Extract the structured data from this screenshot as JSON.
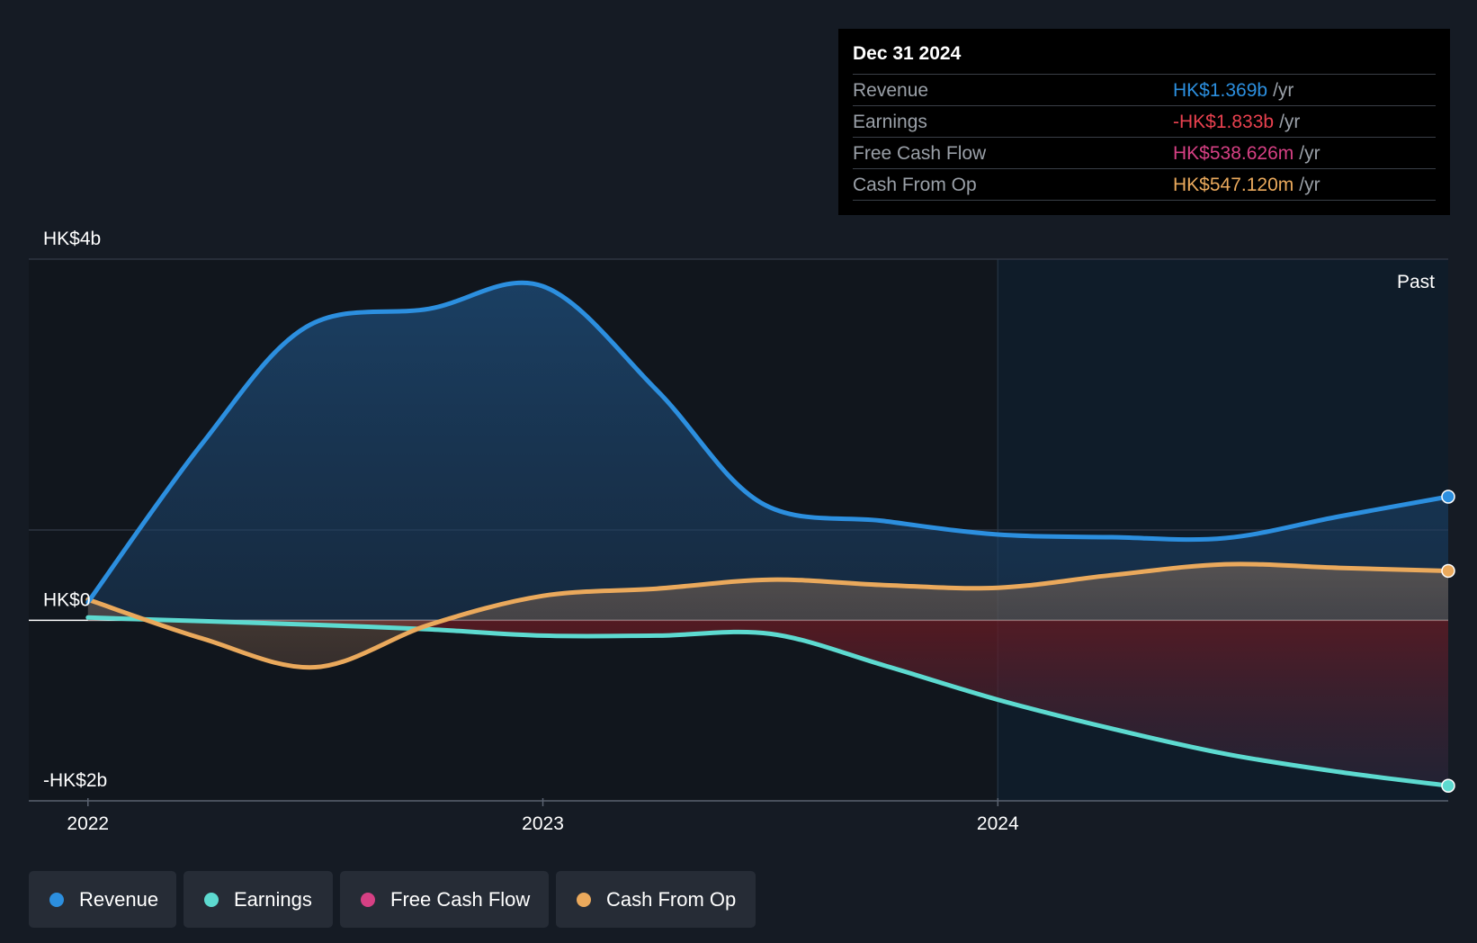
{
  "tooltip": {
    "date": "Dec 31 2024",
    "rows": [
      {
        "label": "Revenue",
        "value": "HK$1.369b",
        "unit": "/yr",
        "color": "#2c8fdf"
      },
      {
        "label": "Earnings",
        "value": "-HK$1.833b",
        "unit": "/yr",
        "color": "#e8414f"
      },
      {
        "label": "Free Cash Flow",
        "value": "HK$538.626m",
        "unit": "/yr",
        "color": "#d64084"
      },
      {
        "label": "Cash From Op",
        "value": "HK$547.120m",
        "unit": "/yr",
        "color": "#eaa95c"
      }
    ]
  },
  "legend": [
    {
      "label": "Revenue",
      "color": "#2c8fdf"
    },
    {
      "label": "Earnings",
      "color": "#5ddad0"
    },
    {
      "label": "Free Cash Flow",
      "color": "#d64084"
    },
    {
      "label": "Cash From Op",
      "color": "#eaa95c"
    }
  ],
  "chart_data": {
    "type": "area",
    "past_label": "Past",
    "y_tick_labels": [
      "HK$4b",
      "HK$0",
      "-HK$2b"
    ],
    "x_tick_labels": [
      "2022",
      "2023",
      "2024"
    ],
    "x_ticks": [
      2022,
      2023,
      2024
    ],
    "xlim": [
      2021.87,
      2024.99
    ],
    "ylim": [
      -2.0,
      4.0
    ],
    "forecast_start": 2024.0,
    "units": "HK$ billions",
    "series": [
      {
        "name": "Revenue",
        "color": "#2c8fdf",
        "x": [
          2022.0,
          2022.25,
          2022.48,
          2022.75,
          2023.0,
          2023.25,
          2023.48,
          2023.75,
          2024.0,
          2024.25,
          2024.5,
          2024.75,
          2024.99
        ],
        "y": [
          0.2,
          1.95,
          3.25,
          3.45,
          3.7,
          2.55,
          1.3,
          1.1,
          0.95,
          0.92,
          0.91,
          1.15,
          1.369
        ]
      },
      {
        "name": "Earnings",
        "color": "#5ddad0",
        "x": [
          2022.0,
          2022.25,
          2022.5,
          2022.75,
          2023.0,
          2023.25,
          2023.5,
          2023.75,
          2024.0,
          2024.25,
          2024.5,
          2024.75,
          2024.99
        ],
        "y": [
          0.03,
          -0.01,
          -0.05,
          -0.1,
          -0.17,
          -0.17,
          -0.15,
          -0.5,
          -0.88,
          -1.2,
          -1.48,
          -1.68,
          -1.833
        ]
      },
      {
        "name": "Cash From Op",
        "color": "#eaa95c",
        "x": [
          2022.0,
          2022.25,
          2022.5,
          2022.75,
          2023.0,
          2023.25,
          2023.5,
          2023.75,
          2024.0,
          2024.25,
          2024.5,
          2024.75,
          2024.99
        ],
        "y": [
          0.23,
          -0.2,
          -0.52,
          -0.05,
          0.27,
          0.35,
          0.45,
          0.39,
          0.36,
          0.5,
          0.62,
          0.58,
          0.547
        ]
      }
    ]
  }
}
